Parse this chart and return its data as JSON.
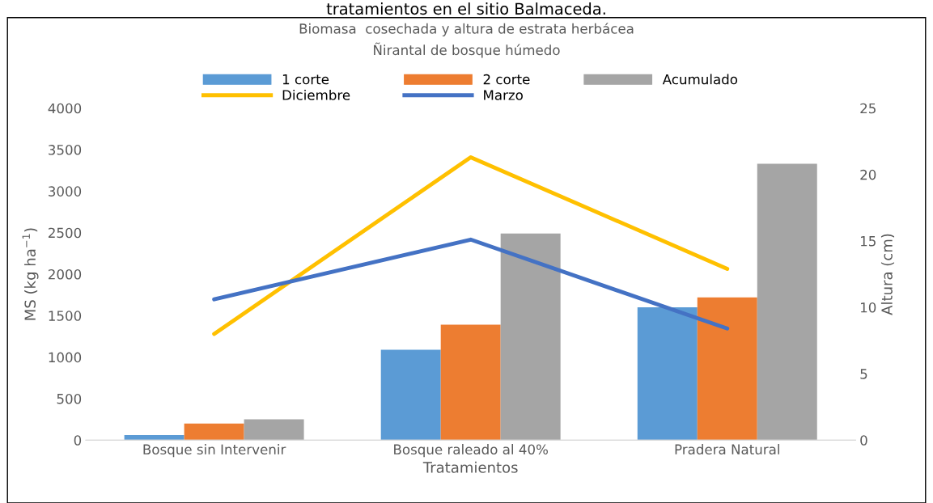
{
  "chart_data": {
    "type": "bar",
    "title": "Biomasa  cosechada y altura de estrata herbácea\nÑirantal de bosque húmedo",
    "xlabel": "Tratamientos",
    "ylabel": "MS (kg ha$^{−1}$)",
    "y2label": "Altura (cm)",
    "categories": [
      "Bosque sin Intervenir",
      "Bosque raleado al 40%",
      "Pradera Natural"
    ],
    "series": [
      {
        "name": "1 corte",
        "color": "#5b9bd5",
        "values": [
          60,
          1090,
          1600
        ]
      },
      {
        "name": "2 corte",
        "color": "#ed7d31",
        "values": [
          200,
          1390,
          1720
        ]
      },
      {
        "name": "Acumulado",
        "color": "#a5a5a5",
        "values": [
          250,
          2490,
          3330
        ]
      },
      {
        "name": "Diciembre",
        "type": "line",
        "axis": "y2",
        "color": "#ffc000",
        "values": [
          8.0,
          21.3,
          12.9
        ]
      },
      {
        "name": "Marzo",
        "type": "line",
        "axis": "y2",
        "color": "#4472c4",
        "values": [
          10.6,
          15.1,
          8.4
        ]
      }
    ],
    "ylim": [
      0,
      4000
    ],
    "yticks": [
      0,
      500,
      1000,
      1500,
      2000,
      2500,
      3000,
      3500,
      4000
    ],
    "y2lim": [
      0,
      25
    ],
    "y2ticks": [
      0,
      5,
      10,
      15,
      20,
      25
    ],
    "grid": false,
    "legend": "top",
    "marker": "none",
    "annotations": [
      "tratamientos en el sitio Balmaceda."
    ]
  }
}
